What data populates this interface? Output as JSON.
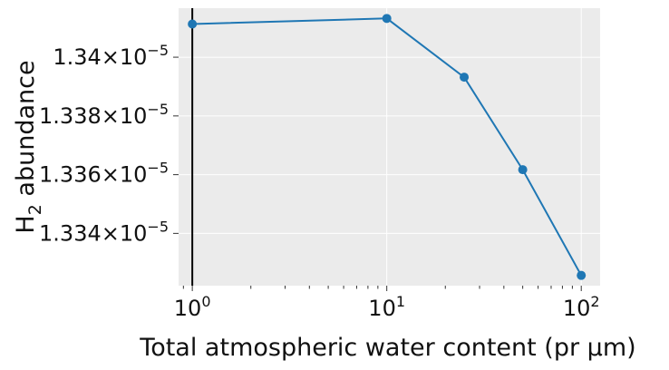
{
  "chart_data": {
    "type": "line",
    "xlabel": "Total atmospheric water content (pr μm)",
    "ylabel_main": "H",
    "ylabel_sub": "2",
    "ylabel_rest": " abundance",
    "xscale": "log",
    "xlim": [
      0.85,
      125
    ],
    "ylim": [
      1.33222e-05,
      1.34167e-05
    ],
    "x_ticks": [
      {
        "value": 1,
        "base": "10",
        "exp": "0"
      },
      {
        "value": 10,
        "base": "10",
        "exp": "1"
      },
      {
        "value": 100,
        "base": "10",
        "exp": "2"
      }
    ],
    "y_ticks": [
      {
        "value": 1.334e-05,
        "mant": "1.334",
        "base": "×10",
        "exp": "−5"
      },
      {
        "value": 1.336e-05,
        "mant": "1.336",
        "base": "×10",
        "exp": "−5"
      },
      {
        "value": 1.338e-05,
        "mant": "1.338",
        "base": "×10",
        "exp": "−5"
      },
      {
        "value": 1.34e-05,
        "mant": "1.34",
        "base": "×10",
        "exp": "−5"
      }
    ],
    "series": [
      {
        "color": "#1f77b4",
        "x": [
          1,
          10,
          25,
          50,
          100
        ],
        "y": [
          1.34113e-05,
          1.34132e-05,
          1.33932e-05,
          1.33617e-05,
          1.33257e-05
        ]
      }
    ],
    "vline_x": 1,
    "grid": true,
    "background": "#ebebeb"
  }
}
